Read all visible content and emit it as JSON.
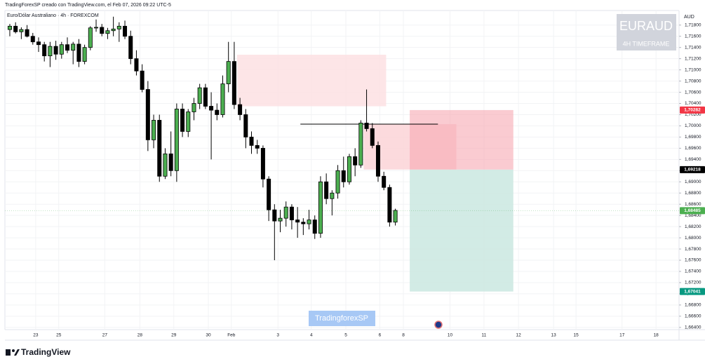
{
  "chart_data": {
    "type": "candlestick",
    "subtitle": "TradingForexSP creado con TradingView.com, el Feb 07, 2026 09:22 UTC-5",
    "title": "Euro/Dólar Australiano · 4h · FOREXCOM",
    "currency": "AUD",
    "watermark": {
      "symbol": "EURAUD",
      "timeframe": "4H TIMEFRAME"
    },
    "annotation": "TradingforexSP",
    "brand": "TradingView",
    "up_color": "#4caf50",
    "down_color": "#000000",
    "grid": true,
    "open": [
      1.7172,
      1.7178,
      1.7168,
      1.7172,
      1.716,
      1.715,
      1.7145,
      1.7125,
      1.7142,
      1.7128,
      1.7145,
      1.7135,
      1.7146,
      1.7115,
      1.714,
      1.7175,
      1.7176,
      1.7165,
      1.717,
      1.7173,
      1.7178,
      1.716,
      1.712,
      1.7098,
      1.7065,
      1.6975,
      1.701,
      1.691,
      1.695,
      1.692,
      1.703,
      1.699,
      1.7025,
      1.704,
      1.7068,
      1.7035,
      1.7028,
      1.702,
      1.7075,
      1.7115,
      1.7038,
      1.702,
      1.698,
      1.6965,
      1.696,
      1.6905,
      1.685,
      1.683,
      1.6835,
      1.6855,
      1.6832,
      1.6828,
      1.6825,
      1.6832,
      1.6808,
      1.69,
      1.687,
      1.688,
      1.692,
      1.69,
      1.6945,
      1.693,
      1.7005,
      1.6995,
      1.6965,
      1.691,
      1.689,
      1.6828
    ],
    "high": [
      1.7182,
      1.7185,
      1.7176,
      1.718,
      1.7166,
      1.7158,
      1.715,
      1.715,
      1.7152,
      1.715,
      1.7158,
      1.715,
      1.7155,
      1.7145,
      1.7178,
      1.719,
      1.7182,
      1.7175,
      1.7195,
      1.7185,
      1.7188,
      1.717,
      1.7135,
      1.711,
      1.708,
      1.702,
      1.702,
      1.696,
      1.699,
      1.704,
      1.704,
      1.703,
      1.705,
      1.7075,
      1.7075,
      1.706,
      1.704,
      1.709,
      1.715,
      1.715,
      1.705,
      1.703,
      1.699,
      1.6975,
      1.6965,
      1.691,
      1.686,
      1.685,
      1.6865,
      1.686,
      1.6855,
      1.6835,
      1.685,
      1.684,
      1.691,
      1.6915,
      1.6885,
      1.693,
      1.6945,
      1.695,
      1.696,
      1.701,
      1.7065,
      1.7005,
      1.6972,
      1.6918,
      1.6895,
      1.6852
    ],
    "low": [
      1.716,
      1.7165,
      1.7155,
      1.7158,
      1.7145,
      1.7132,
      1.7115,
      1.7105,
      1.7118,
      1.712,
      1.713,
      1.711,
      1.7105,
      1.711,
      1.7135,
      1.7168,
      1.716,
      1.7155,
      1.716,
      1.715,
      1.7155,
      1.711,
      1.709,
      1.706,
      1.6955,
      1.696,
      1.69,
      1.6905,
      1.691,
      1.69,
      1.698,
      1.698,
      1.701,
      1.703,
      1.703,
      1.694,
      1.701,
      1.7015,
      1.706,
      1.703,
      1.701,
      1.696,
      1.695,
      1.695,
      1.689,
      1.683,
      1.676,
      1.681,
      1.682,
      1.6815,
      1.68,
      1.6805,
      1.6815,
      1.6798,
      1.68,
      1.686,
      1.684,
      1.687,
      1.689,
      1.6895,
      1.691,
      1.6925,
      1.699,
      1.696,
      1.69,
      1.6885,
      1.682,
      1.6822
    ],
    "close": [
      1.7178,
      1.7168,
      1.7172,
      1.716,
      1.715,
      1.7145,
      1.7125,
      1.7142,
      1.7128,
      1.7145,
      1.7135,
      1.7146,
      1.7115,
      1.714,
      1.7175,
      1.7176,
      1.7165,
      1.717,
      1.7173,
      1.7178,
      1.716,
      1.712,
      1.7098,
      1.7065,
      1.6975,
      1.701,
      1.691,
      1.695,
      1.692,
      1.703,
      1.699,
      1.7025,
      1.704,
      1.7068,
      1.7035,
      1.7028,
      1.702,
      1.7075,
      1.7115,
      1.7038,
      1.702,
      1.698,
      1.6965,
      1.696,
      1.6905,
      1.685,
      1.683,
      1.6835,
      1.6855,
      1.6832,
      1.6828,
      1.6825,
      1.6832,
      1.6808,
      1.69,
      1.687,
      1.688,
      1.692,
      1.69,
      1.6945,
      1.693,
      1.7005,
      1.6995,
      1.6965,
      1.691,
      1.689,
      1.6828,
      1.6849
    ],
    "xlim": [
      -0.85,
      116.3
    ],
    "xticks": [
      {
        "value": 4.5,
        "label": "23"
      },
      {
        "value": 8.5,
        "label": "25"
      },
      {
        "value": 16.5,
        "label": "27"
      },
      {
        "value": 22.6,
        "label": "28"
      },
      {
        "value": 28.5,
        "label": "29"
      },
      {
        "value": 34.5,
        "label": "30"
      },
      {
        "value": 38.5,
        "label": "Feb"
      },
      {
        "value": 46.6,
        "label": "3"
      },
      {
        "value": 52.4,
        "label": "4"
      },
      {
        "value": 58.4,
        "label": "5"
      },
      {
        "value": 64.3,
        "label": "6"
      },
      {
        "value": 68.4,
        "label": "8"
      },
      {
        "value": 76.5,
        "label": "10"
      },
      {
        "value": 82.4,
        "label": "11"
      },
      {
        "value": 88.4,
        "label": "12"
      },
      {
        "value": 94.5,
        "label": "13"
      },
      {
        "value": 98.4,
        "label": "15"
      },
      {
        "value": 106.4,
        "label": "17"
      },
      {
        "value": 112.3,
        "label": "18"
      }
    ],
    "ylim": [
      1.6636,
      1.7206
    ],
    "yticks": [
      {
        "value": 1.718,
        "label": "1,71800"
      },
      {
        "value": 1.716,
        "label": "1,71600"
      },
      {
        "value": 1.714,
        "label": "1,71400"
      },
      {
        "value": 1.712,
        "label": "1,71200"
      },
      {
        "value": 1.71,
        "label": "1,71000"
      },
      {
        "value": 1.708,
        "label": "1,70800"
      },
      {
        "value": 1.706,
        "label": "1,70600"
      },
      {
        "value": 1.704,
        "label": "1,70400"
      },
      {
        "value": 1.702,
        "label": "1,70200"
      },
      {
        "value": 1.7,
        "label": "1,70000"
      },
      {
        "value": 1.698,
        "label": "1,69800"
      },
      {
        "value": 1.696,
        "label": "1,69600"
      },
      {
        "value": 1.694,
        "label": "1,69400"
      },
      {
        "value": 1.692,
        "label": "1,69200"
      },
      {
        "value": 1.69,
        "label": "1,69000"
      },
      {
        "value": 1.688,
        "label": "1,68800"
      },
      {
        "value": 1.686,
        "label": "1,68600"
      },
      {
        "value": 1.684,
        "label": "1,68400"
      },
      {
        "value": 1.682,
        "label": "1,68200"
      },
      {
        "value": 1.68,
        "label": "1,68000"
      },
      {
        "value": 1.678,
        "label": "1,67800"
      },
      {
        "value": 1.676,
        "label": "1,67600"
      },
      {
        "value": 1.674,
        "label": "1,67400"
      },
      {
        "value": 1.672,
        "label": "1,67200"
      },
      {
        "value": 1.67,
        "label": "1,67000"
      },
      {
        "value": 1.668,
        "label": "1,66800"
      },
      {
        "value": 1.666,
        "label": "1,66600"
      },
      {
        "value": 1.664,
        "label": "1,66400"
      }
    ],
    "zones": [
      {
        "start": 39.5,
        "end": 65.4,
        "top": 1.7127,
        "bottom": 1.7035,
        "color": "#fde0e3"
      },
      {
        "start": 61.5,
        "end": 77.6,
        "top": 1.7003,
        "bottom": 1.6922,
        "color": "#fbd3d7"
      }
    ],
    "level_line": {
      "start": 50.5,
      "end": 74.4,
      "value": 1.7003,
      "color": "#000000"
    },
    "position": {
      "start": 69.5,
      "end": 87.5,
      "stop": {
        "value": 1.70282,
        "label": "1,70282",
        "color": "#f23645"
      },
      "entry": {
        "value": 1.69218,
        "label": "1,69218",
        "color": "#000000"
      },
      "target": {
        "value": 1.67041,
        "label": "1,67041",
        "color": "#089981"
      },
      "risk_color": "#f7a9b2",
      "reward_color": "#cde9e2"
    },
    "last_price": {
      "value": 1.68485,
      "label": "1,68485",
      "color": "#4caf50"
    }
  }
}
